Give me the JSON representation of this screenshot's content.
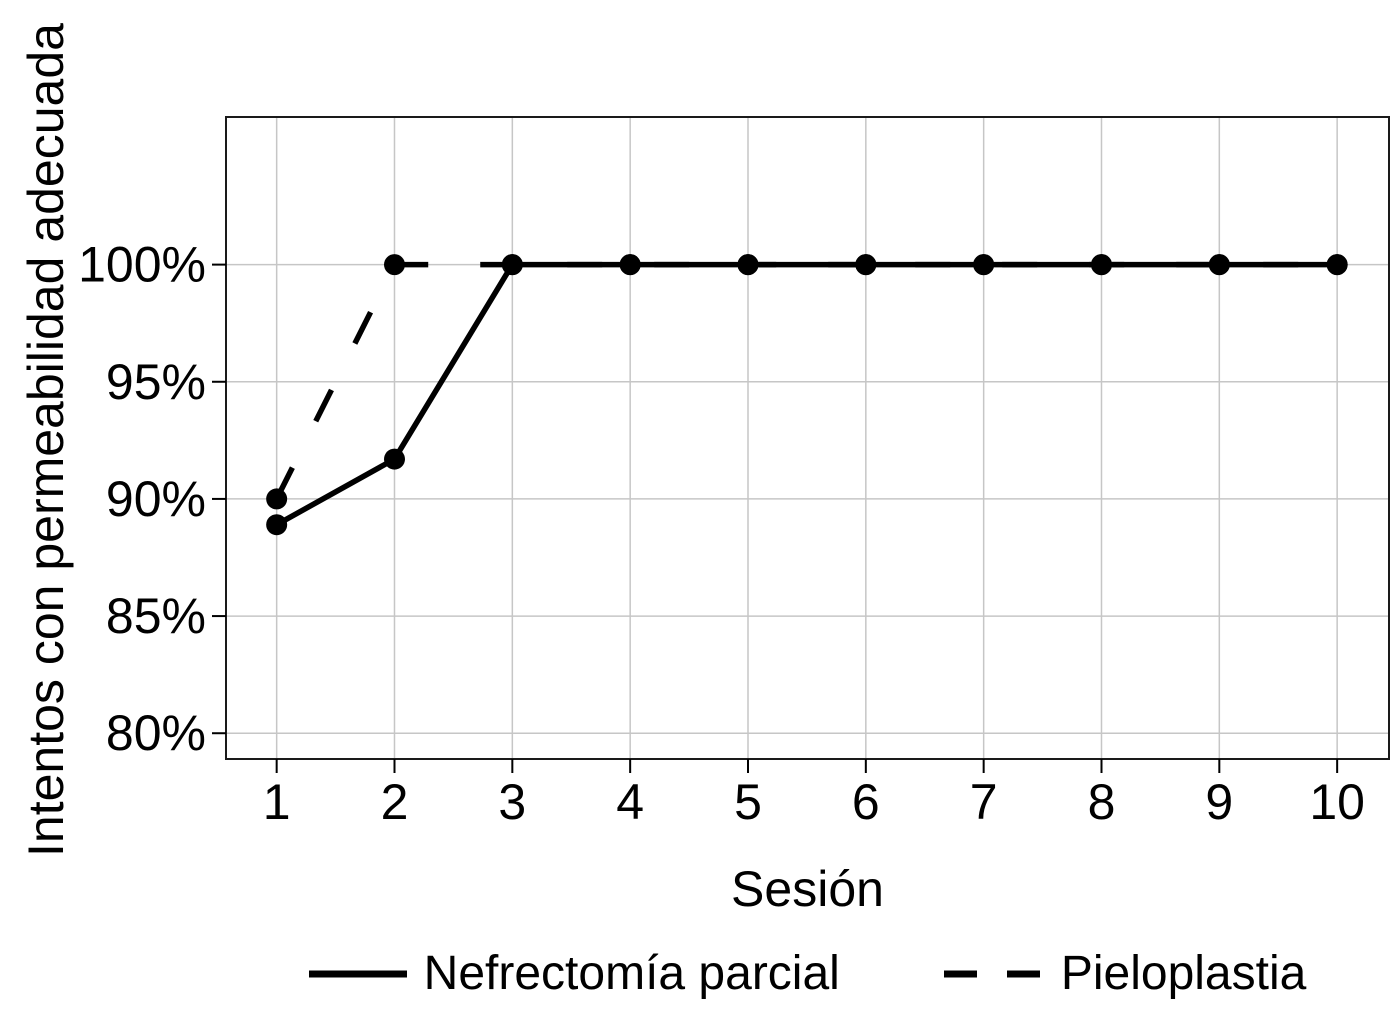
{
  "chart_data": {
    "type": "line",
    "title": "",
    "xlabel": "Sesión",
    "ylabel": "Intentos con permeabilidad adecuada",
    "categories": [
      1,
      2,
      3,
      4,
      5,
      6,
      7,
      8,
      9,
      10
    ],
    "x_tick_labels": [
      "1",
      "2",
      "3",
      "4",
      "5",
      "6",
      "7",
      "8",
      "9",
      "10"
    ],
    "y_ticks": [
      80,
      85,
      90,
      95,
      100
    ],
    "y_tick_labels": [
      "80%",
      "85%",
      "90%",
      "95%",
      "100%"
    ],
    "xlim": [
      0.57,
      10.44
    ],
    "ylim": [
      78.9,
      106.3
    ],
    "grid": true,
    "legend_position": "bottom",
    "series": [
      {
        "name": "Nefrectomía parcial",
        "line_style": "solid",
        "marker": "circle",
        "values": [
          88.9,
          91.7,
          100,
          100,
          100,
          100,
          100,
          100,
          100,
          100
        ]
      },
      {
        "name": "Pieloplastia",
        "line_style": "dashed",
        "marker": "circle",
        "values": [
          90,
          100,
          100,
          100,
          100,
          100,
          100,
          100,
          100,
          100
        ]
      }
    ],
    "colors": {
      "series": "#000000",
      "grid": "#c6c6c6",
      "panel_border": "#1a1a1a",
      "tick": "#000000",
      "text": "#000000",
      "background": "#ffffff"
    }
  }
}
